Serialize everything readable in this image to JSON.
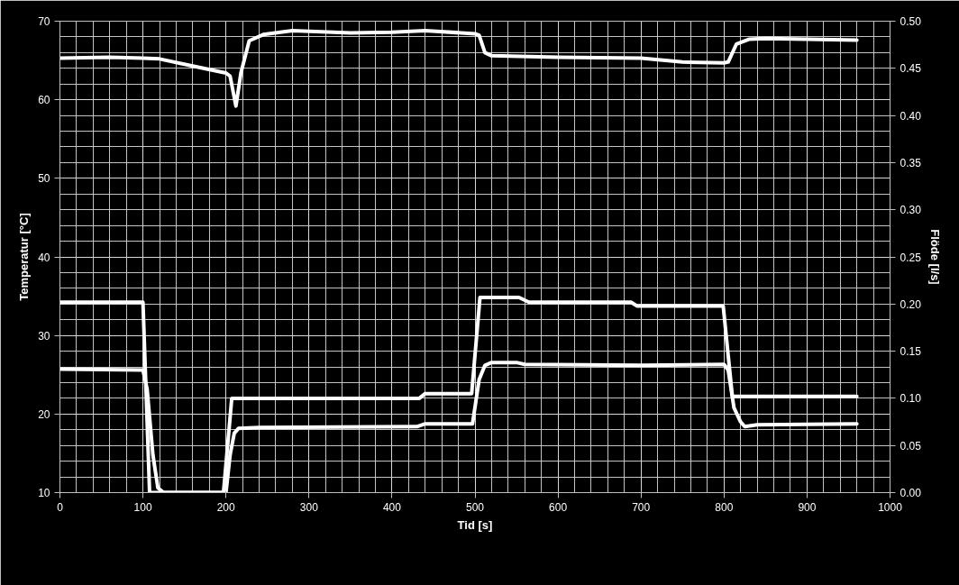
{
  "chart_data": {
    "type": "line",
    "xlabel": "Tid [s]",
    "ylabel": "Temperatur [°C]",
    "y2label": "Flöde [l/s]",
    "xlim": [
      0,
      1000
    ],
    "xticks": [
      0,
      100,
      200,
      300,
      400,
      500,
      600,
      700,
      800,
      900,
      1000
    ],
    "ylim": [
      10,
      70
    ],
    "yticks": [
      10,
      20,
      30,
      40,
      50,
      60,
      70
    ],
    "y2lim": [
      0,
      0.5
    ],
    "y2ticks": [
      {
        "value": 0,
        "label": "0.00"
      },
      {
        "value": 0.05,
        "label": "0.05"
      },
      {
        "value": 0.1,
        "label": "0.10"
      },
      {
        "value": 0.15,
        "label": "0.15"
      },
      {
        "value": 0.2,
        "label": "0.20"
      },
      {
        "value": 0.25,
        "label": "0.25"
      },
      {
        "value": 0.3,
        "label": "0.30"
      },
      {
        "value": 0.35,
        "label": "0.35"
      },
      {
        "value": 0.4,
        "label": "0.40"
      },
      {
        "value": 0.45,
        "label": "0.45"
      },
      {
        "value": 0.5,
        "label": "0.50"
      }
    ],
    "grid": true,
    "marker": "none",
    "line_style": "solid",
    "series": [
      {
        "color": "#ffffff",
        "x": [
          0,
          60,
          100,
          120,
          160,
          200,
          205,
          212,
          218,
          228,
          245,
          280,
          350,
          400,
          440,
          500,
          505,
          512,
          520,
          600,
          700,
          750,
          800,
          805,
          815,
          830,
          850,
          900,
          960
        ],
        "values": [
          65.3,
          65.4,
          65.3,
          65.2,
          64.3,
          63.4,
          63.0,
          59.2,
          63.4,
          67.5,
          68.3,
          68.8,
          68.5,
          68.6,
          68.8,
          68.4,
          68.2,
          66.0,
          65.6,
          65.4,
          65.3,
          64.8,
          64.7,
          64.8,
          67.1,
          67.7,
          67.8,
          67.7,
          67.6
        ]
      },
      {
        "color": "#ffffff",
        "axis": "y2",
        "x": [
          0,
          100,
          108,
          197,
          207,
          433,
          440,
          496,
          506,
          553,
          565,
          688,
          695,
          799,
          810,
          960
        ],
        "values": [
          0.202,
          0.202,
          0.0,
          0.0,
          0.1,
          0.1,
          0.105,
          0.105,
          0.207,
          0.207,
          0.202,
          0.202,
          0.198,
          0.198,
          0.102,
          0.102
        ]
      },
      {
        "color": "#ffffff",
        "axis": "y2",
        "x": [
          0,
          100,
          105,
          112,
          118,
          125,
          200,
          205,
          210,
          215,
          240,
          430,
          440,
          497,
          505,
          512,
          520,
          550,
          560,
          700,
          800,
          805,
          812,
          820,
          825,
          840,
          960
        ],
        "values": [
          0.131,
          0.13,
          0.11,
          0.04,
          0.005,
          0.0,
          0.0,
          0.04,
          0.063,
          0.068,
          0.069,
          0.07,
          0.073,
          0.073,
          0.12,
          0.135,
          0.138,
          0.138,
          0.136,
          0.135,
          0.136,
          0.13,
          0.09,
          0.075,
          0.07,
          0.072,
          0.073
        ]
      }
    ]
  }
}
